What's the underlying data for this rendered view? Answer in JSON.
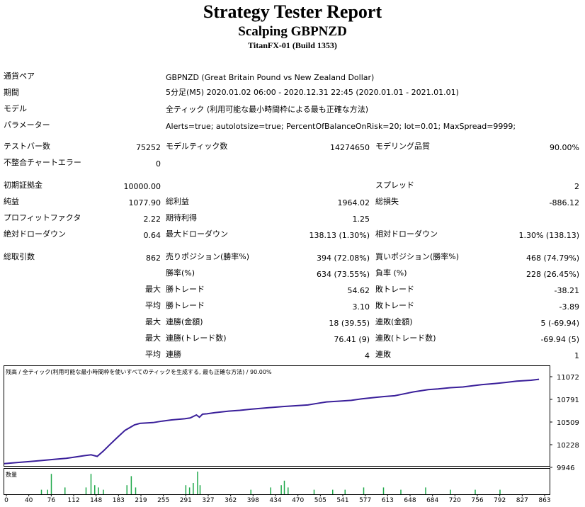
{
  "header": {
    "title": "Strategy Tester Report",
    "subtitle": "Scalping GBPNZD",
    "server": "TitanFX-01 (Build 1353)"
  },
  "info": {
    "symbol_label": "通貨ペア",
    "symbol_value": "GBPNZD (Great Britain Pound vs New Zealand Dollar)",
    "period_label": "期間",
    "period_value": "5分足(M5) 2020.01.02 06:00 - 2020.12.31 22:45 (2020.01.01 - 2021.01.01)",
    "model_label": "モデル",
    "model_value": "全ティック (利用可能な最小時間枠による最も正確な方法)",
    "params_label": "パラメーター",
    "params_value": "Alerts=true; autolotsize=true; PercentOfBalanceOnRisk=20; lot=0.01; MaxSpread=9999;"
  },
  "bars": {
    "bars_label": "テストバー数",
    "bars_value": "75252",
    "ticks_label": "モデルティック数",
    "ticks_value": "14274650",
    "quality_label": "モデリング品質",
    "quality_value": "90.00%",
    "errors_label": "不整合チャートエラー",
    "errors_value": "0"
  },
  "stats": {
    "deposit_label": "初期証拠金",
    "deposit_value": "10000.00",
    "spread_label": "スプレッド",
    "spread_value": "2",
    "net_label": "純益",
    "net_value": "1077.90",
    "gross_profit_label": "総利益",
    "gross_profit_value": "1964.02",
    "gross_loss_label": "総損失",
    "gross_loss_value": "-886.12",
    "pf_label": "プロフィットファクタ",
    "pf_value": "2.22",
    "payoff_label": "期待利得",
    "payoff_value": "1.25",
    "abs_dd_label": "絶対ドローダウン",
    "abs_dd_value": "0.64",
    "max_dd_label": "最大ドローダウン",
    "max_dd_value": "138.13 (1.30%)",
    "rel_dd_label": "相対ドローダウン",
    "rel_dd_value": "1.30% (138.13)"
  },
  "trades": {
    "total_label": "総取引数",
    "total_value": "862",
    "short_label": "売りポジション(勝率%)",
    "short_value": "394 (72.08%)",
    "long_label": "買いポジション(勝率%)",
    "long_value": "468 (74.79%)",
    "win_label": "勝率(%)",
    "win_value": "634 (73.55%)",
    "loss_label": "負率 (%)",
    "loss_value": "228 (26.45%)",
    "q_max": "最大",
    "q_avg": "平均",
    "largest_win_label": "勝トレード",
    "largest_win_value": "54.62",
    "largest_loss_label": "敗トレード",
    "largest_loss_value": "-38.21",
    "avg_win_label": "勝トレード",
    "avg_win_value": "3.10",
    "avg_loss_label": "敗トレード",
    "avg_loss_value": "-3.89",
    "max_cons_win_label": "連勝(金額)",
    "max_cons_win_value": "18 (39.55)",
    "max_cons_loss_label": "連敗(金額)",
    "max_cons_loss_value": "5 (-69.94)",
    "max_cons_profit_label": "連勝(トレード数)",
    "max_cons_profit_value": "76.41 (9)",
    "max_cons_lossamt_label": "連敗(トレード数)",
    "max_cons_lossamt_value": "-69.94 (5)",
    "avg_cons_win_label": "連勝",
    "avg_cons_win_value": "4",
    "avg_cons_loss_label": "連敗",
    "avg_cons_loss_value": "1"
  },
  "chart_data": {
    "type": "line",
    "title": "残高 / 全ティック(利用可能な最小時間枠を使いすべてのティックを生成する, 最も正確な方法) / 90.00%",
    "volume_label": "数量",
    "ylim": [
      9946,
      11100
    ],
    "xlim": [
      0,
      880
    ],
    "y_ticks": [
      "11072",
      "10791",
      "10509",
      "10228",
      "9946"
    ],
    "x_ticks": [
      "0",
      "40",
      "76",
      "112",
      "148",
      "183",
      "219",
      "255",
      "291",
      "327",
      "362",
      "398",
      "434",
      "470",
      "505",
      "541",
      "577",
      "613",
      "648",
      "684",
      "720",
      "756",
      "792",
      "827",
      "863"
    ],
    "series": [
      {
        "x": [
          0,
          20,
          40,
          60,
          80,
          100,
          112,
          130,
          140,
          150,
          160,
          170,
          183,
          195,
          210,
          219,
          240,
          255,
          270,
          291,
          300,
          310,
          315,
          320,
          327,
          340,
          362,
          380,
          398,
          420,
          434,
          450,
          470,
          490,
          505,
          520,
          541,
          560,
          577,
          600,
          613,
          630,
          648,
          660,
          684,
          700,
          720,
          740,
          756,
          770,
          792,
          810,
          827,
          850,
          863
        ],
        "y": [
          9985,
          10000,
          10012,
          10025,
          10040,
          10055,
          10068,
          10090,
          10100,
          10080,
          10150,
          10230,
          10330,
          10420,
          10490,
          10510,
          10520,
          10540,
          10555,
          10570,
          10580,
          10620,
          10590,
          10630,
          10635,
          10650,
          10670,
          10680,
          10695,
          10710,
          10720,
          10730,
          10740,
          10750,
          10770,
          10790,
          10800,
          10810,
          10830,
          10850,
          10860,
          10870,
          10900,
          10920,
          10950,
          10960,
          10975,
          10985,
          11000,
          11015,
          11030,
          11045,
          11060,
          11072,
          11085
        ]
      }
    ],
    "volume": [
      {
        "x": 60,
        "v": 0.2
      },
      {
        "x": 70,
        "v": 0.2
      },
      {
        "x": 76,
        "v": 0.9
      },
      {
        "x": 98,
        "v": 0.3
      },
      {
        "x": 132,
        "v": 0.3
      },
      {
        "x": 140,
        "v": 0.9
      },
      {
        "x": 146,
        "v": 0.4
      },
      {
        "x": 152,
        "v": 0.3
      },
      {
        "x": 160,
        "v": 0.2
      },
      {
        "x": 198,
        "v": 0.4
      },
      {
        "x": 205,
        "v": 0.8
      },
      {
        "x": 212,
        "v": 0.3
      },
      {
        "x": 293,
        "v": 0.4
      },
      {
        "x": 299,
        "v": 0.3
      },
      {
        "x": 305,
        "v": 0.5
      },
      {
        "x": 312,
        "v": 1.0
      },
      {
        "x": 316,
        "v": 0.4
      },
      {
        "x": 398,
        "v": 0.2
      },
      {
        "x": 430,
        "v": 0.3
      },
      {
        "x": 447,
        "v": 0.4
      },
      {
        "x": 452,
        "v": 0.6
      },
      {
        "x": 458,
        "v": 0.3
      },
      {
        "x": 500,
        "v": 0.2
      },
      {
        "x": 530,
        "v": 0.2
      },
      {
        "x": 550,
        "v": 0.2
      },
      {
        "x": 580,
        "v": 0.3
      },
      {
        "x": 612,
        "v": 0.3
      },
      {
        "x": 640,
        "v": 0.2
      },
      {
        "x": 680,
        "v": 0.3
      },
      {
        "x": 720,
        "v": 0.2
      },
      {
        "x": 760,
        "v": 0.2
      },
      {
        "x": 800,
        "v": 0.2
      }
    ],
    "line_color": "#3a1f9a",
    "volume_color": "#1fa84a"
  }
}
